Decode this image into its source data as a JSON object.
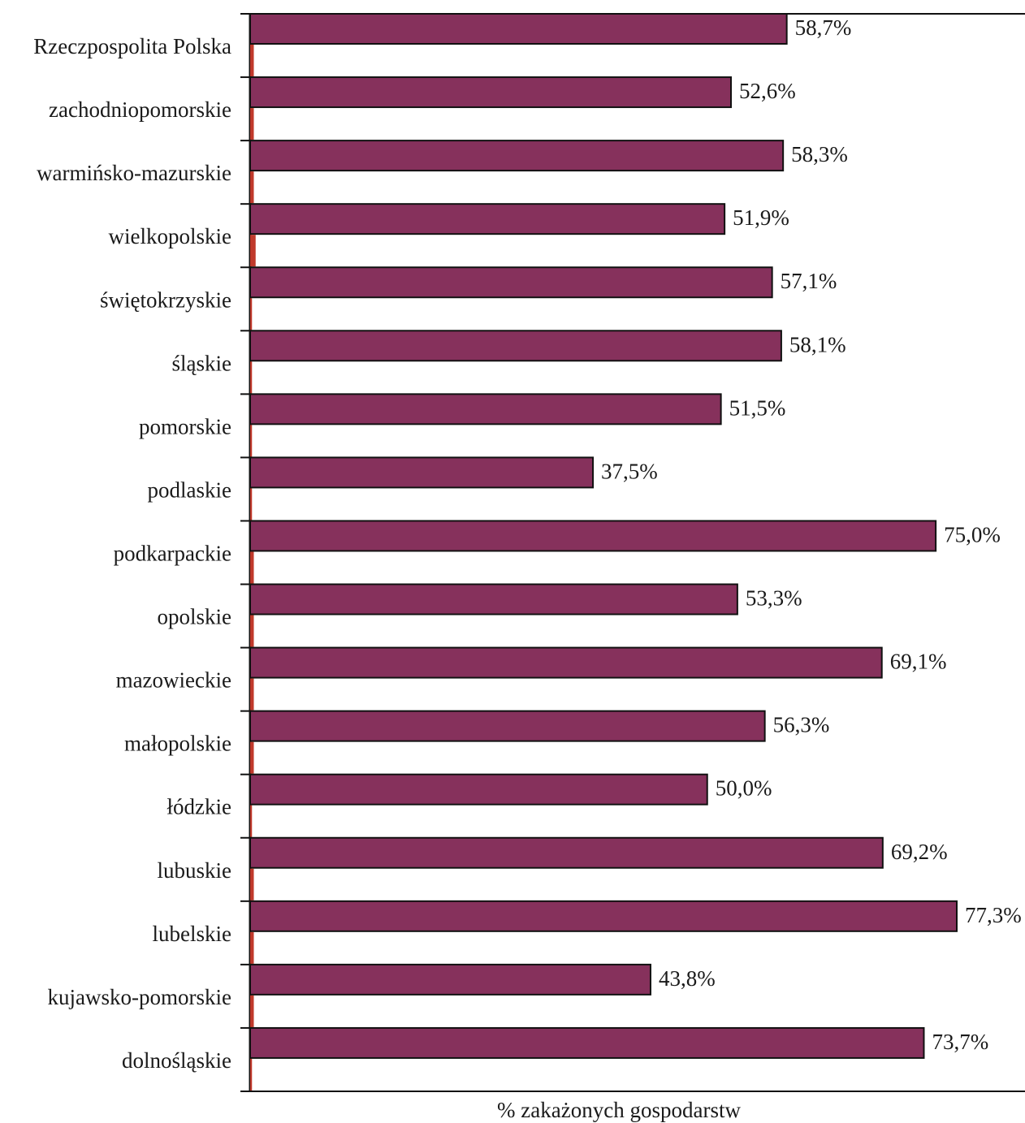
{
  "chart_data": {
    "type": "bar",
    "orientation": "horizontal",
    "categories": [
      "Rzeczpospolita Polska",
      "zachodniopomorskie",
      "warmińsko-mazurskie",
      "wielkopolskie",
      "świętokrzyskie",
      "śląskie",
      "pomorskie",
      "podlaskie",
      "podkarpackie",
      "opolskie",
      "mazowieckie",
      "małopolskie",
      "łódzkie",
      "lubuskie",
      "lubelskie",
      "kujawsko-pomorskie",
      "dolnośląskie"
    ],
    "series": [
      {
        "values": [
          58.7,
          52.6,
          58.3,
          51.9,
          57.1,
          58.1,
          51.5,
          37.5,
          75.0,
          53.3,
          69.1,
          56.3,
          50.0,
          69.2,
          77.3,
          43.8,
          73.7
        ],
        "color": "#86315c"
      },
      {
        "values": [
          0.4,
          0.4,
          0.4,
          0.6,
          0.2,
          0.2,
          0.2,
          0.2,
          0.4,
          0.4,
          0.4,
          0.4,
          0.2,
          0.4,
          0.4,
          0.4,
          0.2
        ],
        "color": "#c0392b"
      }
    ],
    "value_labels": [
      "58,7%",
      "52,6%",
      "58,3%",
      "51,9%",
      "57,1%",
      "58,1%",
      "51,5%",
      "37,5%",
      "75,0%",
      "53,3%",
      "69,1%",
      "56,3%",
      "50,0%",
      "69,2%",
      "77,3%",
      "43,8%",
      "73,7%"
    ],
    "title": "",
    "xlabel": "% zakażonych gospodarstw",
    "ylabel": "",
    "xlim": [
      0,
      85
    ],
    "grid": false,
    "legend": "none"
  }
}
